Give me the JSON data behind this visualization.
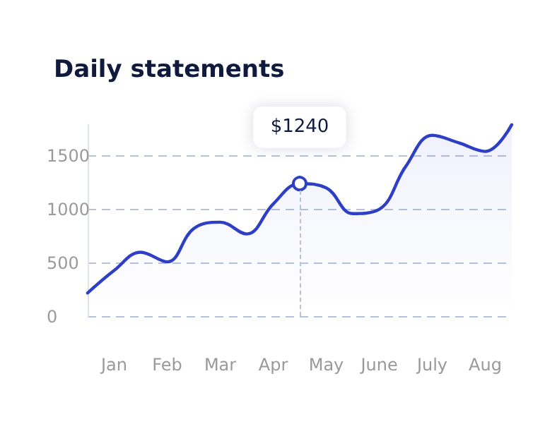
{
  "chart_data": {
    "type": "area",
    "title": "Daily statements",
    "categories": [
      null,
      "Jan",
      null,
      "Feb",
      null,
      "Mar",
      null,
      "Apr",
      null,
      "May",
      null,
      "June",
      null,
      "July",
      null,
      "Aug",
      null
    ],
    "values": [
      220,
      430,
      600,
      510,
      820,
      880,
      770,
      1050,
      1240,
      1200,
      960,
      1000,
      1400,
      1690,
      1620,
      1540,
      1790
    ],
    "value_labels": [
      null,
      null,
      null,
      null,
      null,
      null,
      null,
      null,
      "$1240",
      null,
      null,
      null,
      null,
      null,
      null,
      null,
      null
    ],
    "color": "#2e3fc6",
    "ylim": [
      0,
      1790
    ],
    "yticks": [
      0,
      500,
      1000,
      1500
    ],
    "grid": "y"
  }
}
